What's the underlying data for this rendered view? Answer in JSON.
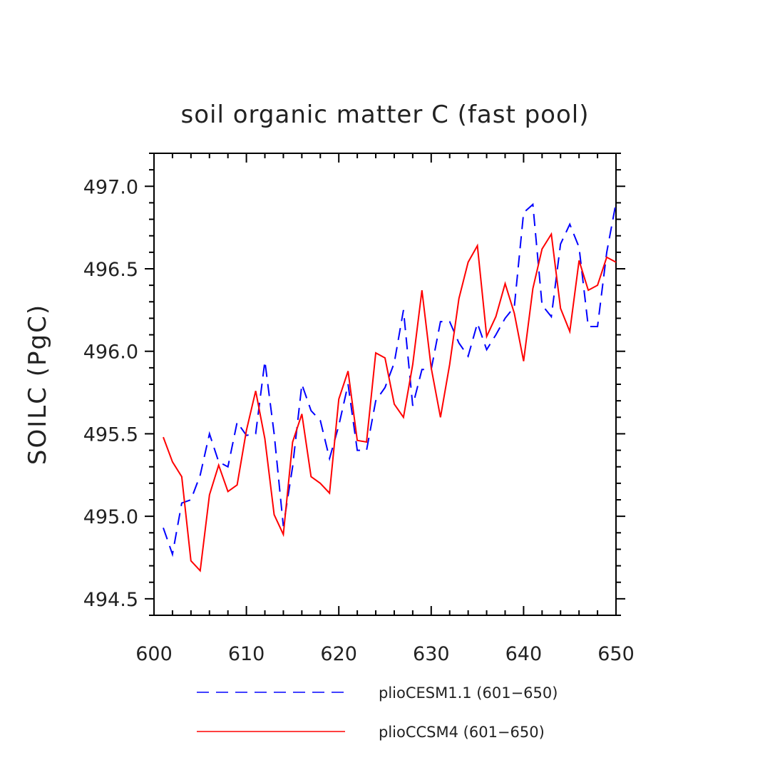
{
  "chart_data": {
    "type": "line",
    "title": "soil organic matter C (fast pool)",
    "xlabel": "",
    "ylabel": "SOILC  (PgC)",
    "xlim": [
      600,
      650
    ],
    "ylim": [
      494.4,
      497.2
    ],
    "x_major_ticks": [
      600,
      610,
      620,
      630,
      640,
      650
    ],
    "x_tick_labels": [
      "600",
      "610",
      "620",
      "630",
      "640",
      "650"
    ],
    "y_major_ticks": [
      494.5,
      495.0,
      495.5,
      496.0,
      496.5,
      497.0
    ],
    "y_tick_labels": [
      "494.5",
      "495.0",
      "495.5",
      "496.0",
      "496.5",
      "497.0"
    ],
    "grid": false,
    "legend_position": "bottom",
    "series": [
      {
        "name": "plioCESM1.1 (601−650)",
        "color": "#0000ff",
        "style": "dashed",
        "x": [
          601,
          602,
          603,
          604,
          605,
          606,
          607,
          608,
          609,
          610,
          611,
          612,
          613,
          614,
          615,
          616,
          617,
          618,
          619,
          620,
          621,
          622,
          623,
          624,
          625,
          626,
          627,
          628,
          629,
          630,
          631,
          632,
          633,
          634,
          635,
          636,
          637,
          638,
          639,
          640,
          641,
          642,
          643,
          644,
          645,
          646,
          647,
          648,
          649,
          650
        ],
        "values": [
          494.93,
          494.77,
          495.08,
          495.1,
          495.25,
          495.5,
          495.33,
          495.3,
          495.57,
          495.49,
          495.5,
          495.94,
          495.5,
          494.94,
          495.3,
          495.8,
          495.64,
          495.58,
          495.35,
          495.55,
          495.8,
          495.4,
          495.4,
          495.7,
          495.78,
          495.93,
          496.25,
          495.67,
          495.89,
          495.89,
          496.18,
          496.18,
          496.05,
          495.97,
          496.17,
          496.01,
          496.1,
          496.2,
          496.27,
          496.84,
          496.89,
          496.28,
          496.21,
          496.65,
          496.77,
          496.63,
          496.15,
          496.15,
          496.6,
          496.9
        ]
      },
      {
        "name": "plioCCSM4 (601−650)",
        "color": "#ff0000",
        "style": "solid",
        "x": [
          601,
          602,
          603,
          604,
          605,
          606,
          607,
          608,
          609,
          610,
          611,
          612,
          613,
          614,
          615,
          616,
          617,
          618,
          619,
          620,
          621,
          622,
          623,
          624,
          625,
          626,
          627,
          628,
          629,
          630,
          631,
          632,
          633,
          634,
          635,
          636,
          637,
          638,
          639,
          640,
          641,
          642,
          643,
          644,
          645,
          646,
          647,
          648,
          649,
          650
        ],
        "values": [
          495.48,
          495.33,
          495.24,
          494.73,
          494.67,
          495.13,
          495.31,
          495.15,
          495.19,
          495.52,
          495.76,
          495.47,
          495.01,
          494.89,
          495.45,
          495.62,
          495.24,
          495.2,
          495.14,
          495.71,
          495.88,
          495.46,
          495.45,
          495.99,
          495.96,
          495.68,
          495.6,
          495.92,
          496.37,
          495.9,
          495.6,
          495.92,
          496.32,
          496.54,
          496.64,
          496.09,
          496.21,
          496.41,
          496.23,
          495.94,
          496.38,
          496.62,
          496.71,
          496.26,
          496.12,
          496.55,
          496.37,
          496.4,
          496.57,
          496.54
        ]
      }
    ]
  }
}
